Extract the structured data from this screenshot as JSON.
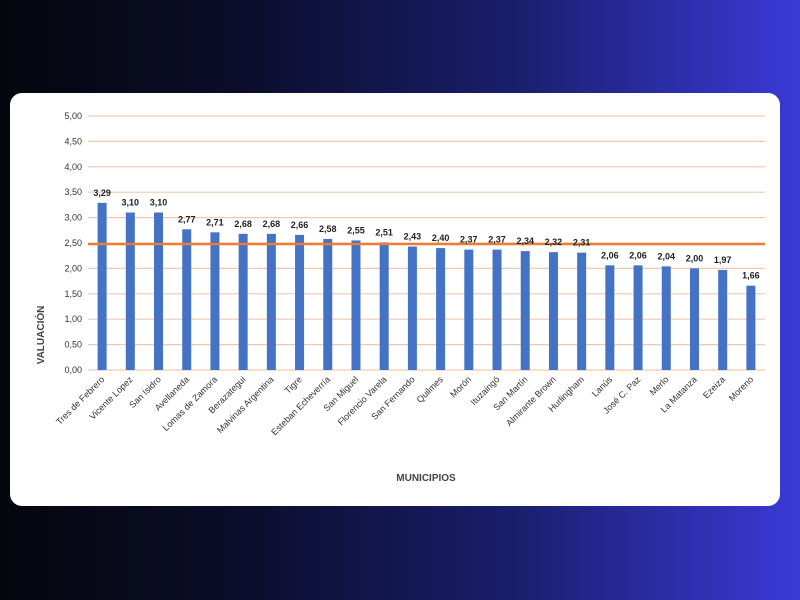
{
  "chart_data": {
    "type": "bar",
    "title": "",
    "xlabel": "MUNICIPIOS",
    "ylabel": "VALUACIÓN",
    "ylim": [
      0,
      5
    ],
    "yticks": [
      "0,00",
      "0,50",
      "1,00",
      "1,50",
      "2,00",
      "2,50",
      "3,00",
      "3,50",
      "4,00",
      "4,50",
      "5,00"
    ],
    "reference_line": 2.48,
    "grid": true,
    "categories": [
      "Tres de Febrero",
      "Vicente Lopez",
      "San Isidro",
      "Avellaneda",
      "Lomas de Zamora",
      "Berazategui",
      "Malvinas Argentina",
      "Tigre",
      "Esteban Echeverría",
      "San Miguel",
      "Florencio Varela",
      "San Fernando",
      "Quilmes",
      "Morón",
      "Ituzaingó",
      "San Martín",
      "Almirante Brown",
      "Hurlingham",
      "Lanús",
      "José C. Paz",
      "Merlo",
      "La Matanza",
      "Ezeiza",
      "Moreno"
    ],
    "values": [
      3.29,
      3.1,
      3.1,
      2.77,
      2.71,
      2.68,
      2.68,
      2.66,
      2.58,
      2.55,
      2.51,
      2.43,
      2.4,
      2.37,
      2.37,
      2.34,
      2.32,
      2.31,
      2.06,
      2.06,
      2.04,
      2.0,
      1.97,
      1.66
    ],
    "value_labels": [
      "3,29",
      "3,10",
      "3,10",
      "2,77",
      "2,71",
      "2,68",
      "2,68",
      "2,66",
      "2,58",
      "2,55",
      "2,51",
      "2,43",
      "2,40",
      "2,37",
      "2,37",
      "2,34",
      "2,32",
      "2,31",
      "2,06",
      "2,06",
      "2,04",
      "2,00",
      "1,97",
      "1,66"
    ],
    "colors": {
      "bar": "#4472c4",
      "grid": "#f2c9b0",
      "reference": "#ed7d31"
    }
  }
}
